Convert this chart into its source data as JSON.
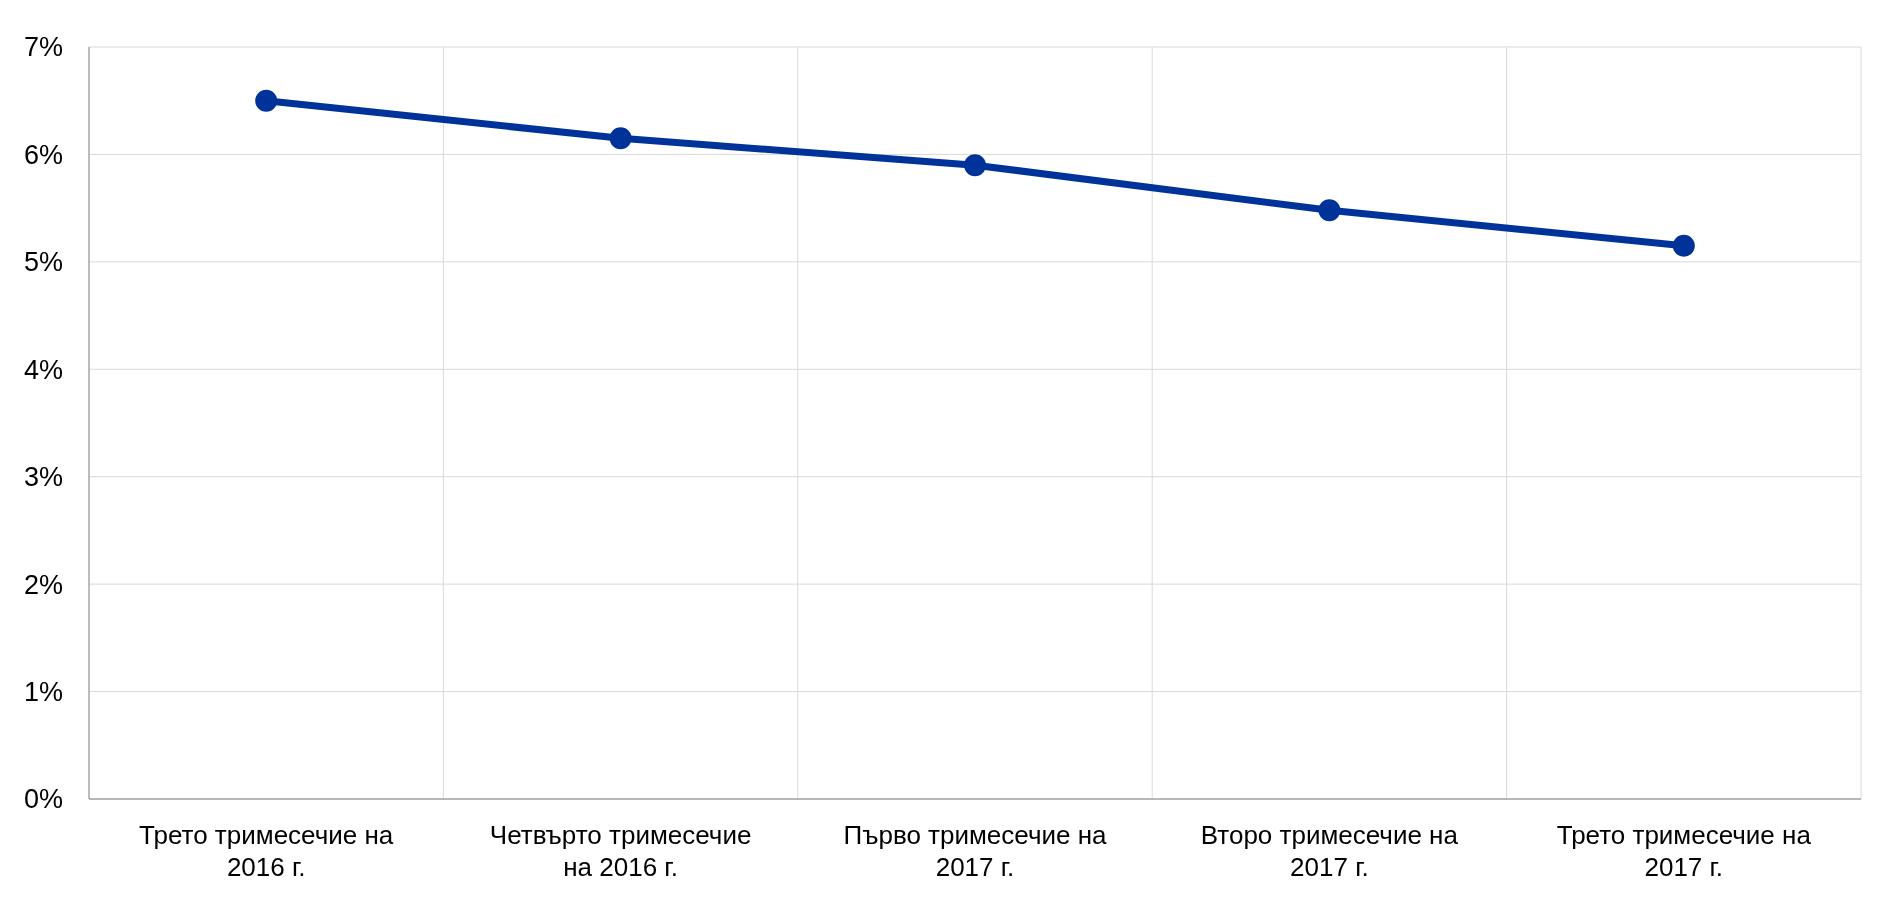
{
  "chart_data": {
    "type": "line",
    "categories": [
      "Трето тримесечие на 2016 г.",
      "Четвърто тримесечие на 2016 г.",
      "Първо тримесечие на 2017 г.",
      "Второ тримесечие на 2017 г.",
      "Трето тримесечие на 2017 г."
    ],
    "series": [
      {
        "color": "#003399",
        "values": [
          6.5,
          6.15,
          5.9,
          5.48,
          5.15
        ]
      }
    ],
    "ylim": [
      0,
      7
    ],
    "yticks": [
      {
        "value": 0,
        "label": "0%"
      },
      {
        "value": 1,
        "label": "1%"
      },
      {
        "value": 2,
        "label": "2%"
      },
      {
        "value": 3,
        "label": "3%"
      },
      {
        "value": 4,
        "label": "4%"
      },
      {
        "value": 5,
        "label": "5%"
      },
      {
        "value": 6,
        "label": "6%"
      },
      {
        "value": 7,
        "label": "7%"
      }
    ],
    "grid": true,
    "marker": "circle",
    "line_style": "solid"
  }
}
